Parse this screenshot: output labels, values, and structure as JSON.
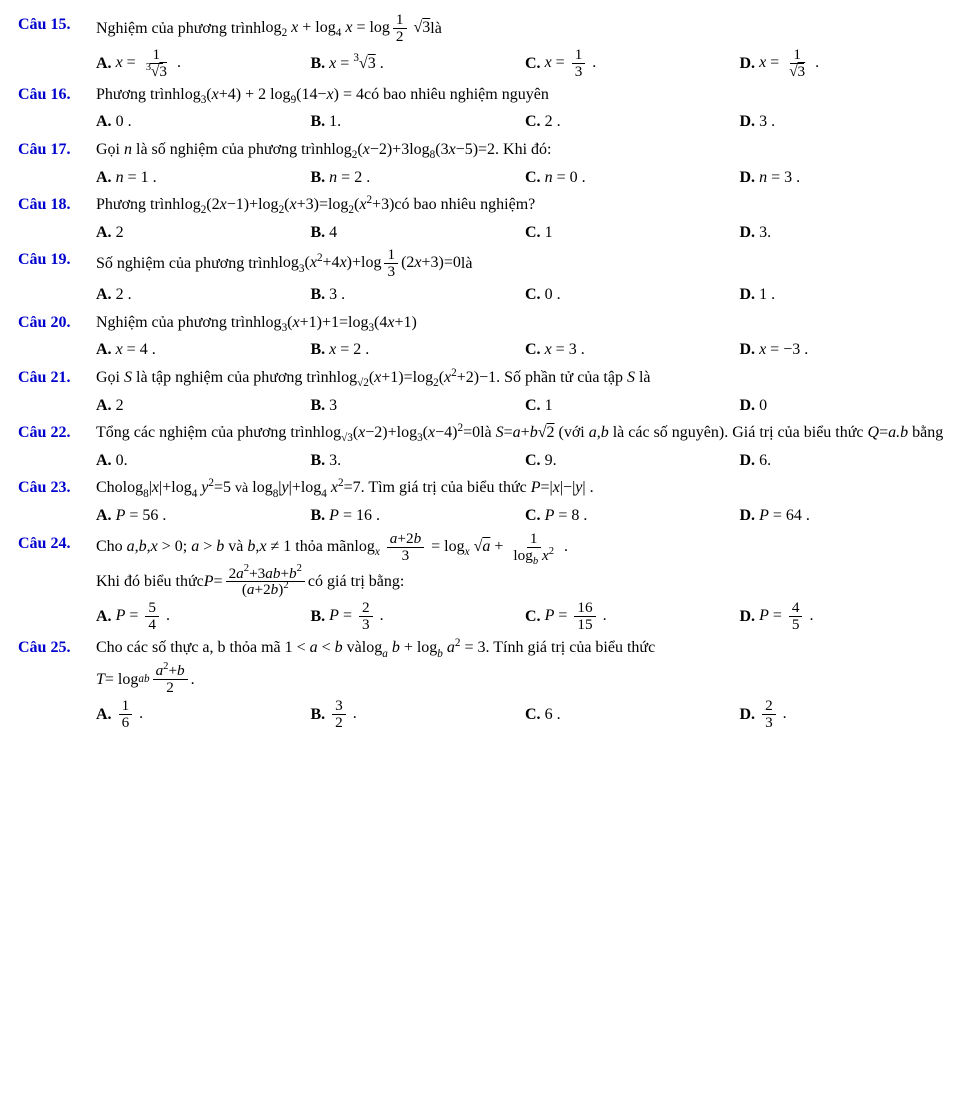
{
  "questions": [
    {
      "num": "Câu 15.",
      "stem_pre": "Nghiệm của phương trình ",
      "stem_math": "log<span class='sub'>2</span> <i>x</i> + log<span class='sub'>4</span> <i>x</i> = log<span class='sub frac'><span class='num'>1</span><span class='den'>2</span></span> √<span class='rt'>3</span>",
      "stem_post": "  là",
      "opts": [
        "<i>x</i> = <span class='frac'><span class='num'>1</span><span class='den'><span class='sup'>3</span>√<span class='rt'>3</span></span></span> .",
        "<i>x</i> = <span class='sup'>3</span>√<span class='rt'>3</span> .",
        "<i>x</i> = <span class='frac'><span class='num'>1</span><span class='den'>3</span></span> .",
        "<i>x</i> = <span class='frac'><span class='num'>1</span><span class='den'>√<span class='rt'>3</span></span></span> ."
      ]
    },
    {
      "num": "Câu 16.",
      "stem_pre": "Phương trình ",
      "stem_math": "log<span class='sub'>3</span>(<i>x</i>+4) + 2 log<span class='sub'>9</span>(14−<i>x</i>) = 4",
      "stem_post": "  có bao nhiêu nghiệm nguyên",
      "opts": [
        "0 .",
        "1.",
        "2 .",
        "3 ."
      ]
    },
    {
      "num": "Câu 17.",
      "stem_pre": "Gọi <i>n</i> là số nghiệm của phương trình ",
      "stem_math": "log<span class='sub'>2</span>(<i>x</i>−2)+3log<span class='sub'>8</span>(3<i>x</i>−5)=2",
      "stem_post": ". Khi đó:",
      "opts": [
        "<i>n</i> = 1 .",
        "<i>n</i> = 2 .",
        "<i>n</i> = 0 .",
        "<i>n</i> = 3 ."
      ]
    },
    {
      "num": "Câu 18.",
      "stem_pre": "Phương trình ",
      "stem_math": "log<span class='sub'>2</span>(2<i>x</i>−1)+log<span class='sub'>2</span>(<i>x</i>+3)=log<span class='sub'>2</span>(<i>x</i><span class='sup'>2</span>+3)",
      "stem_post": " có bao nhiêu nghiệm?",
      "opts": [
        "2",
        "4",
        "1",
        "3."
      ]
    },
    {
      "num": "Câu 19.",
      "stem_pre": "Số nghiệm của phương trình ",
      "stem_math": "log<span class='sub'>3</span>(<i>x</i><span class='sup'>2</span>+4<i>x</i>)+log<span class='sub frac'><span class='num'>1</span><span class='den'>3</span></span>(2<i>x</i>+3)=0",
      "stem_post": "  là",
      "opts": [
        "2 .",
        "3 .",
        "0 .",
        "1 ."
      ]
    },
    {
      "num": "Câu 20.",
      "stem_pre": "Nghiệm của phương trình ",
      "stem_math": "log<span class='sub'>3</span>(<i>x</i>+1)+1=log<span class='sub'>3</span>(4<i>x</i>+1)",
      "stem_post": "",
      "opts": [
        "<i>x</i> = 4 .",
        "<i>x</i> = 2 .",
        "<i>x</i> = 3 .",
        "<i>x</i> = −3 ."
      ]
    },
    {
      "num": "Câu 21.",
      "stem_pre": "Gọi <i>S</i> là tập nghiệm của phương trình ",
      "stem_math": "log<span class='sub'>√2</span>(<i>x</i>+1)=log<span class='sub'>2</span>(<i>x</i><span class='sup'>2</span>+2)−1",
      "stem_post": ". Số phần tử của tập <i>S</i> là",
      "opts": [
        "2",
        "3",
        "1",
        "0"
      ]
    },
    {
      "num": "Câu 22.",
      "stem_pre": "Tổng các nghiệm của phương trình ",
      "stem_math": "log<span class='sub'>√3</span>(<i>x</i>−2)+log<span class='sub'>3</span>(<i>x</i>−4)<span class='sup'>2</span>=0",
      "stem_post": " là <i>S</i>=<i>a</i>+<i>b</i>√<span class='rt'>2</span>  (với <i>a</i>,<i>b</i> là các số nguyên). Giá trị của biểu thức <i>Q</i>=<i>a.b</i> bằng",
      "opts": [
        "0.",
        "3.",
        "9.",
        "6."
      ]
    },
    {
      "num": "Câu 23.",
      "stem_pre": "Cho ",
      "stem_math": "log<span class='sub'>8</span>|<i>x</i>|+log<span class='sub'>4</span> <i>y</i><span class='sup'>2</span>=5 <span style='font-size:14px'>và</span> log<span class='sub'>8</span>|<i>y</i>|+log<span class='sub'>4</span> <i>x</i><span class='sup'>2</span>=7",
      "stem_post": ". Tìm giá trị của biểu thức <i>P</i>=|<i>x</i>|−|<i>y</i>| .",
      "opts": [
        "<i>P</i> = 56 .",
        "<i>P</i> = 16 .",
        "<i>P</i> = 8 .",
        "<i>P</i> = 64 ."
      ]
    },
    {
      "num": "Câu 24.",
      "stem_pre": "Cho <i>a</i>,<i>b</i>,<i>x</i> > 0;  <i>a</i> > <i>b</i> và <i>b</i>,<i>x</i> ≠ 1 thỏa mãn ",
      "stem_math": "log<span class='sub'><i>x</i></span> <span class='frac'><span class='num'><i>a</i>+2<i>b</i></span><span class='den'>3</span></span> = log<span class='sub'><i>x</i></span> √<span class='rt'><i>a</i></span> + <span class='frac'><span class='num'>1</span><span class='den'>log<span class='sub'><i>b</i></span> <i>x</i><span class='sup'>2</span></span></span> .",
      "stem_post": "",
      "extra": "Khi đó biểu thức <i>P</i> = <span class='frac'><span class='num'>2<i>a</i><span class='sup'>2</span>+3<i>ab</i>+<i>b</i><span class='sup'>2</span></span><span class='den'>(<i>a</i>+2<i>b</i>)<span class='sup'>2</span></span></span>  có giá trị bằng:",
      "opts": [
        "<i>P</i> = <span class='frac'><span class='num'>5</span><span class='den'>4</span></span> .",
        "<i>P</i> = <span class='frac'><span class='num'>2</span><span class='den'>3</span></span> .",
        "<i>P</i> = <span class='frac'><span class='num'>16</span><span class='den'>15</span></span> .",
        "<i>P</i> = <span class='frac'><span class='num'>4</span><span class='den'>5</span></span> ."
      ]
    },
    {
      "num": "Câu 25.",
      "stem_pre": "Cho các số thực  a,  b  thỏa mã  1 < <i>a</i> < <i>b</i>  và ",
      "stem_math": "log<span class='sub'><i>a</i></span> <i>b</i> + log<span class='sub'><i>b</i></span> <i>a</i><span class='sup'>2</span> = 3",
      "stem_post": ".  Tính  giá  trị  của  biểu  thức",
      "extra": "<i>T</i> = log<span class='sub'><i>ab</i></span> <span class='frac'><span class='num'><i>a</i><span class='sup'>2</span>+<i>b</i></span><span class='den'>2</span></span> .",
      "opts": [
        "<span class='frac'><span class='num'>1</span><span class='den'>6</span></span> .",
        "<span class='frac'><span class='num'>3</span><span class='den'>2</span></span> .",
        "6 .",
        "<span class='frac'><span class='num'>2</span><span class='den'>3</span></span> ."
      ]
    }
  ],
  "opt_labels": [
    "A.",
    "B.",
    "C.",
    "D."
  ]
}
